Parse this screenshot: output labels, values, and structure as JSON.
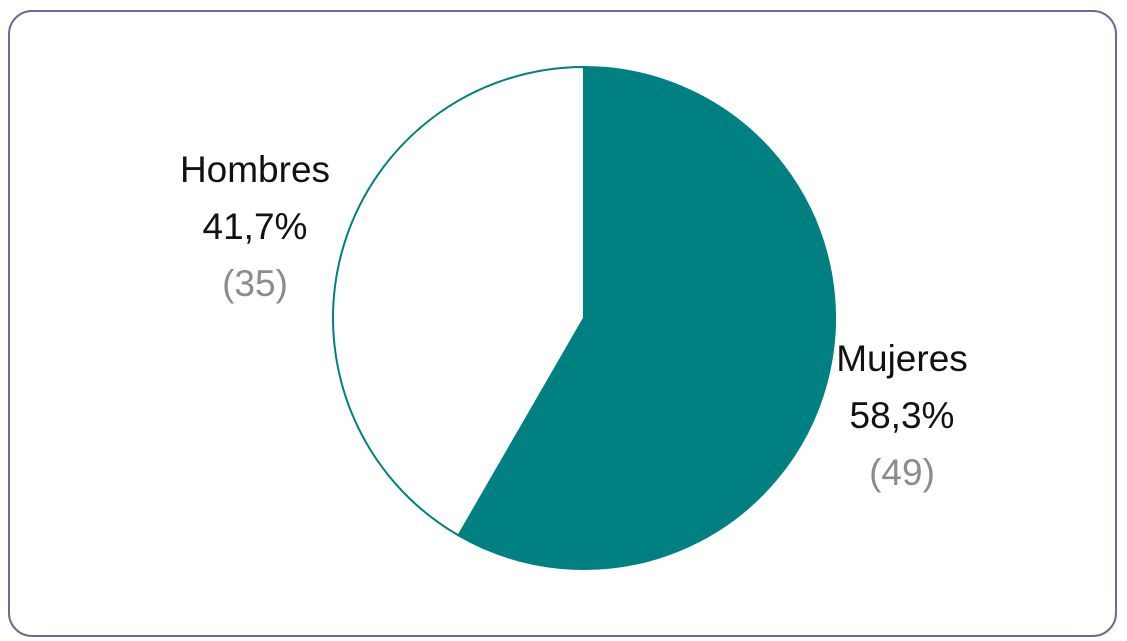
{
  "chart_data": {
    "type": "pie",
    "categories": [
      "Mujeres",
      "Hombres"
    ],
    "percent_labels": [
      "58,3%",
      "41,7%"
    ],
    "count_labels": [
      "(49)",
      "(35)"
    ],
    "values": [
      49,
      35
    ],
    "colors": [
      "#008080",
      "#ffffff"
    ],
    "outline_color": "#008080",
    "count_label_color": "#8c8c8c",
    "frame_color": "#6e6a95",
    "start_angle_deg": 0,
    "direction": "clockwise",
    "legend": "none"
  }
}
